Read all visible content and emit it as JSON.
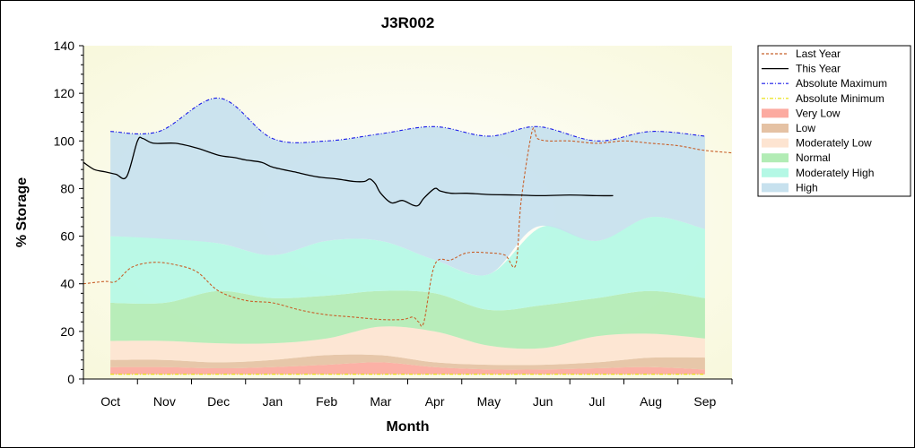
{
  "chart_data": {
    "type": "area",
    "title": "J3R002",
    "xlabel": "Month",
    "ylabel": "% Storage",
    "ylim": [
      0,
      140
    ],
    "yticks": [
      0,
      20,
      40,
      60,
      80,
      100,
      120,
      140
    ],
    "categories": [
      "Oct",
      "Nov",
      "Dec",
      "Jan",
      "Feb",
      "Mar",
      "Apr",
      "May",
      "Jun",
      "Jul",
      "Aug",
      "Sep"
    ],
    "xlim": [
      -0.5,
      11.5
    ],
    "grid": false,
    "legend_position": "right",
    "bands": [
      {
        "name": "Very Low",
        "color": "#fcaaa0",
        "x": [
          0,
          1,
          2,
          3,
          4,
          5,
          6,
          7,
          8,
          9,
          10,
          11
        ],
        "lower": [
          2,
          2,
          2,
          2,
          2,
          2,
          2,
          2,
          2,
          2,
          2,
          2
        ],
        "upper": [
          5,
          5,
          4.5,
          5,
          6,
          7,
          5,
          4,
          4,
          4.5,
          5,
          4
        ]
      },
      {
        "name": "Low",
        "color": "#e5c2a4",
        "x": [
          0,
          1,
          2,
          3,
          4,
          5,
          6,
          7,
          8,
          9,
          10,
          11
        ],
        "lower": [
          5,
          5,
          4.5,
          5,
          6,
          7,
          5,
          4,
          4,
          4.5,
          5,
          4
        ],
        "upper": [
          8,
          8,
          7,
          8,
          10,
          10,
          7,
          6,
          6,
          7,
          9,
          9
        ]
      },
      {
        "name": "Moderately Low",
        "color": "#fde4d1",
        "x": [
          0,
          1,
          2,
          3,
          4,
          5,
          6,
          7,
          8,
          9,
          10,
          11
        ],
        "lower": [
          8,
          8,
          7,
          8,
          10,
          10,
          7,
          6,
          6,
          7,
          9,
          9
        ],
        "upper": [
          16,
          16,
          15,
          15,
          17,
          22,
          20,
          14,
          13,
          18,
          19,
          17
        ]
      },
      {
        "name": "Normal",
        "color": "#b2ecb5",
        "x": [
          0,
          1,
          2,
          3,
          4,
          5,
          6,
          7,
          8,
          9,
          10,
          11
        ],
        "lower": [
          16,
          16,
          15,
          15,
          17,
          22,
          20,
          14,
          13,
          18,
          19,
          17
        ],
        "upper": [
          32,
          32,
          37,
          34,
          35,
          37,
          36,
          29,
          31,
          34,
          37,
          34
        ]
      },
      {
        "name": "Moderately High",
        "color": "#b4f8e5",
        "x": [
          0,
          1,
          2,
          3,
          4,
          5,
          6,
          7,
          8,
          9,
          10,
          11
        ],
        "lower": [
          32,
          32,
          37,
          34,
          35,
          37,
          36,
          29,
          31,
          34,
          37,
          34
        ],
        "upper": [
          60,
          59,
          57,
          52,
          58,
          58,
          50,
          44,
          64,
          58,
          68,
          63
        ]
      },
      {
        "name": "High",
        "color": "#c7e1ee",
        "x": [
          0,
          0.9,
          2,
          3,
          4,
          5,
          6,
          7,
          7.9,
          9,
          10,
          11
        ],
        "lower": [
          60,
          59,
          57,
          52,
          58,
          58,
          50,
          44,
          64,
          58,
          68,
          63
        ],
        "upper": [
          104,
          104,
          118,
          101,
          100,
          103,
          106,
          102,
          106,
          100,
          104,
          102
        ]
      }
    ],
    "series": [
      {
        "name": "Last Year",
        "style": "dashed",
        "color": "#c8602a",
        "x": [
          -0.5,
          -0.1,
          0.1,
          0.4,
          0.8,
          1.2,
          1.6,
          2,
          2.5,
          3,
          3.5,
          4,
          4.5,
          5,
          5.4,
          5.6,
          5.7,
          5.8,
          6,
          6.3,
          6.6,
          7,
          7.3,
          7.5,
          7.6,
          7.8,
          7.9,
          8.1,
          8.5,
          9,
          9.5,
          10,
          10.5,
          11,
          11.5
        ],
        "y": [
          40,
          41,
          41,
          47,
          49,
          48,
          45,
          37,
          33,
          32,
          29,
          27,
          26,
          25,
          25,
          26,
          24,
          24,
          48,
          50,
          53,
          53,
          52,
          48,
          75,
          104,
          101,
          100,
          100,
          99,
          100,
          99,
          98,
          96,
          95
        ]
      },
      {
        "name": "This Year",
        "style": "solid",
        "color": "#000000",
        "x": [
          -0.5,
          -0.3,
          -0.1,
          0.1,
          0.3,
          0.5,
          0.6,
          0.8,
          1.2,
          1.6,
          2,
          2.3,
          2.5,
          2.8,
          3,
          3.4,
          3.8,
          4.2,
          4.5,
          4.7,
          4.8,
          4.9,
          5,
          5.2,
          5.4,
          5.6,
          5.7,
          5.8,
          6,
          6.1,
          6.3,
          6.6,
          7,
          7.5,
          8,
          8.5,
          9,
          9.3
        ],
        "y": [
          91,
          88,
          87,
          86,
          85,
          100,
          101,
          99,
          99,
          97,
          94,
          93,
          92,
          91,
          89,
          87,
          85,
          84,
          83,
          83,
          84,
          82,
          78,
          74,
          75,
          73,
          73,
          76,
          80,
          79,
          78,
          78,
          77.5,
          77.3,
          77,
          77.3,
          77,
          77
        ]
      },
      {
        "name": "Absolute Maximum",
        "style": "dashdot",
        "color": "#1a1ae8",
        "x": [
          0,
          0.9,
          2,
          3,
          4,
          5,
          6,
          7,
          7.9,
          9,
          10,
          11
        ],
        "y": [
          104,
          104,
          118,
          101,
          100,
          103,
          106,
          102,
          106,
          100,
          104,
          102
        ]
      },
      {
        "name": "Absolute Minimum",
        "style": "dashdot",
        "color": "#e8e000",
        "x": [
          0,
          1,
          2,
          3,
          4,
          5,
          6,
          7,
          8,
          9,
          10,
          11
        ],
        "y": [
          2,
          2,
          2,
          2,
          2,
          2,
          2,
          2,
          2,
          2,
          2,
          2
        ]
      }
    ],
    "legend": [
      {
        "label": "Last Year",
        "kind": "dash",
        "color": "#c8602a"
      },
      {
        "label": "This Year",
        "kind": "line",
        "color": "#000000"
      },
      {
        "label": "Absolute Maximum",
        "kind": "dashdot",
        "color": "#1a1ae8"
      },
      {
        "label": "Absolute Minimum",
        "kind": "dashdot",
        "color": "#e8e000"
      },
      {
        "label": "Very Low",
        "kind": "band",
        "color": "#fcaaa0"
      },
      {
        "label": "Low",
        "kind": "band",
        "color": "#e5c2a4"
      },
      {
        "label": "Moderately Low",
        "kind": "band",
        "color": "#fde4d1"
      },
      {
        "label": "Normal",
        "kind": "band",
        "color": "#b2ecb5"
      },
      {
        "label": "Moderately High",
        "kind": "band",
        "color": "#b4f8e5"
      },
      {
        "label": "High",
        "kind": "band",
        "color": "#c7e1ee"
      }
    ],
    "colors": {
      "plot_bg_outer": "#fafae4",
      "plot_bg_inner": "#ffffff"
    }
  }
}
